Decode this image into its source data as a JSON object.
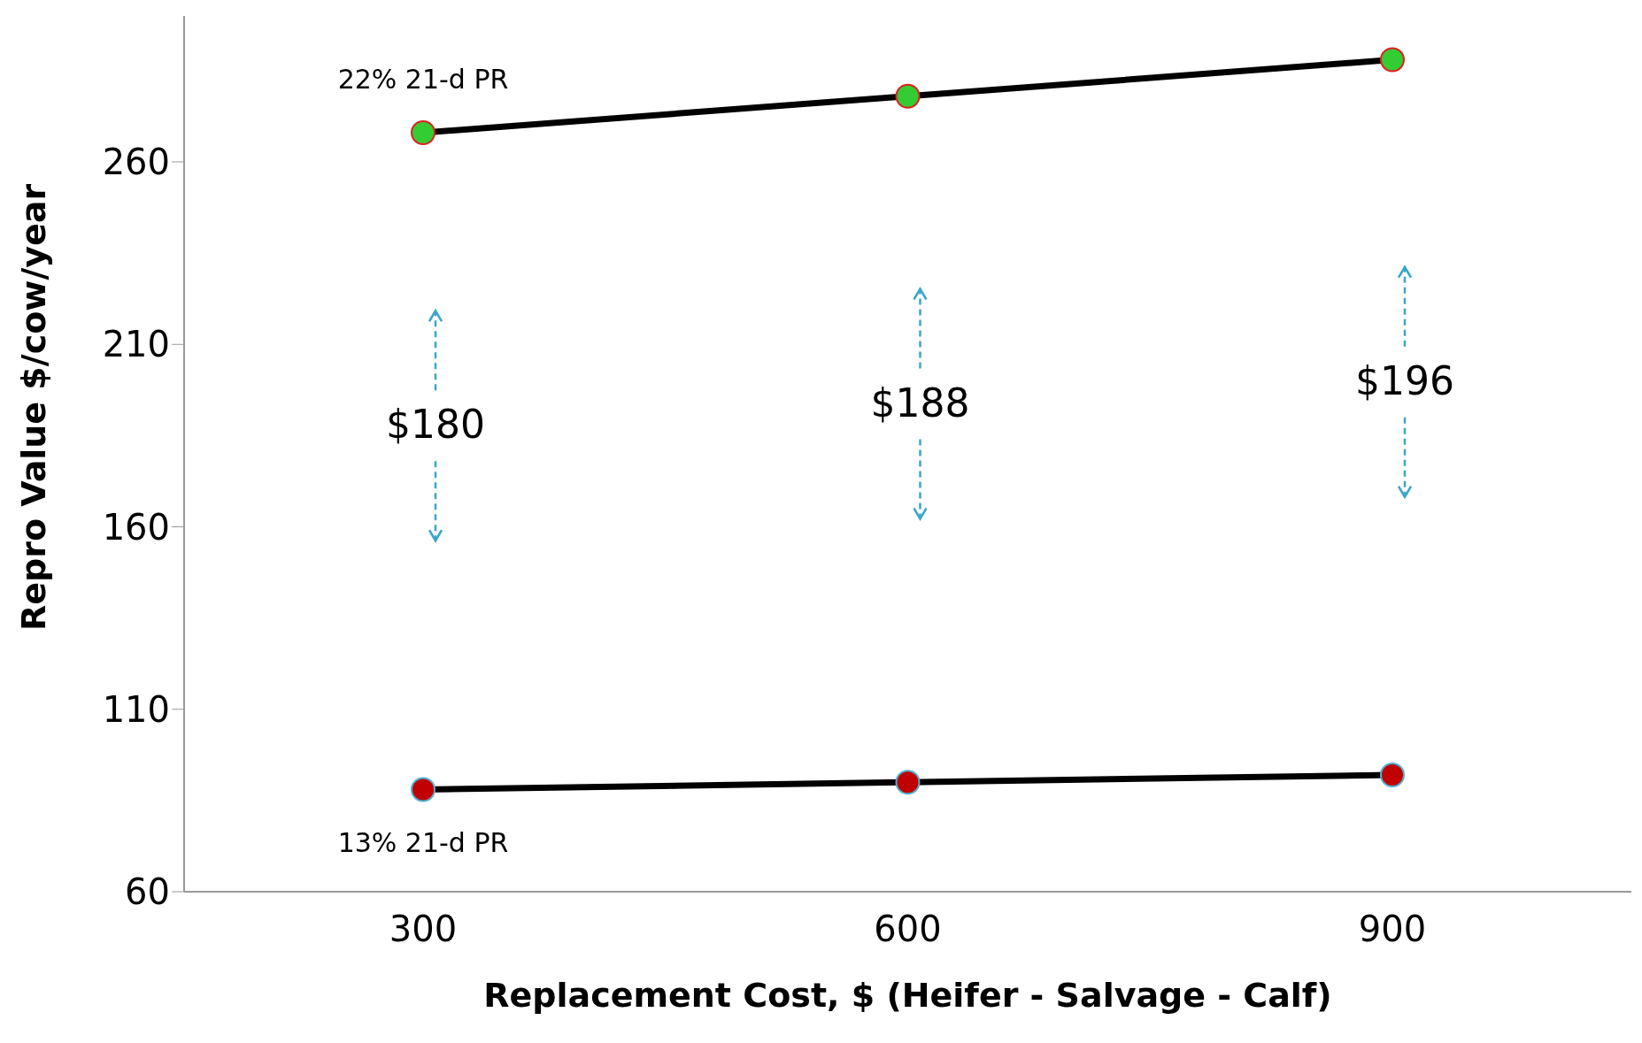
{
  "chart_data": {
    "type": "line",
    "xlabel": "Replacement Cost, $ (Heifer - Salvage - Calf)",
    "ylabel": "Repro Value $/cow/year",
    "categories": [
      "300",
      "600",
      "900"
    ],
    "series": [
      {
        "name": "22% 21-d PR",
        "color": "#000000",
        "colors": [
          "#33cc33",
          "#33cc33",
          "#33cc33"
        ],
        "values": [
          268,
          278,
          288
        ]
      },
      {
        "name": "13% 21-d PR",
        "color": "#000000",
        "colors": [
          "#c00000",
          "#c00000",
          "#c00000"
        ],
        "values": [
          88,
          90,
          92
        ]
      }
    ],
    "ylim": [
      60,
      300
    ],
    "yticks": [
      60,
      110,
      160,
      210,
      260
    ],
    "grid": false,
    "legend": false,
    "marker": "circle",
    "line_style": "solid",
    "annotations": [
      "$180",
      "$188",
      "$196"
    ]
  }
}
